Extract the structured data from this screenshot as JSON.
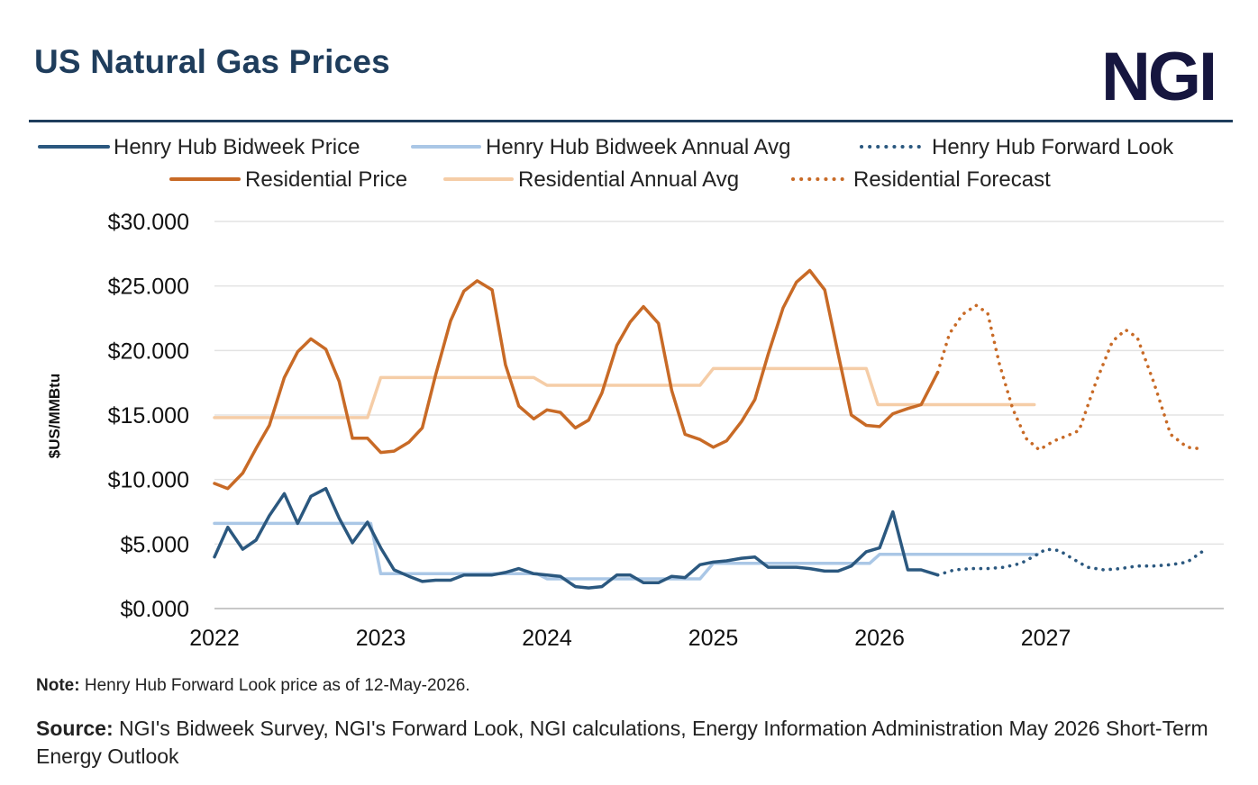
{
  "header": {
    "title": "US Natural Gas Prices",
    "logo_text": "NGI"
  },
  "footer": {
    "note_label": "Note:",
    "note_text": " Henry Hub Forward Look price as of 12-May-2026.",
    "source_label": "Source:",
    "source_text": " NGI's Bidweek Survey, NGI's Forward Look, NGI calculations, Energy Information Administration May 2026 Short-Term Energy Outlook"
  },
  "colors": {
    "henry_hub": "#2b587f",
    "henry_hub_avg": "#aac7e6",
    "residential": "#c86a26",
    "residential_avg": "#f5cda7",
    "grid": "#e3e3e3",
    "axis": "#c8c8c8"
  },
  "chart_data": {
    "type": "line",
    "title": "US Natural Gas Prices",
    "xlabel": "",
    "ylabel": "$US/MMBtu",
    "xlim": [
      2022.0,
      2028.07
    ],
    "ylim": [
      0,
      30
    ],
    "x_ticks": [
      2022,
      2023,
      2024,
      2025,
      2026,
      2027
    ],
    "y_ticks": [
      "$0.000",
      "$5.000",
      "$10.000",
      "$15.000",
      "$20.000",
      "$25.000",
      "$30.000"
    ],
    "grid": true,
    "legend_position": "top",
    "series": [
      {
        "name": "Henry Hub Bidweek Price",
        "style": "solid",
        "color": "#2b587f",
        "points": [
          [
            2022.0,
            4.0
          ],
          [
            2022.08,
            6.3
          ],
          [
            2022.17,
            4.6
          ],
          [
            2022.25,
            5.3
          ],
          [
            2022.33,
            7.2
          ],
          [
            2022.42,
            8.9
          ],
          [
            2022.5,
            6.6
          ],
          [
            2022.58,
            8.7
          ],
          [
            2022.67,
            9.3
          ],
          [
            2022.75,
            7.0
          ],
          [
            2022.83,
            5.1
          ],
          [
            2022.92,
            6.7
          ],
          [
            2023.0,
            4.7
          ],
          [
            2023.08,
            3.0
          ],
          [
            2023.17,
            2.5
          ],
          [
            2023.25,
            2.1
          ],
          [
            2023.33,
            2.2
          ],
          [
            2023.42,
            2.2
          ],
          [
            2023.5,
            2.6
          ],
          [
            2023.58,
            2.6
          ],
          [
            2023.67,
            2.6
          ],
          [
            2023.75,
            2.8
          ],
          [
            2023.83,
            3.1
          ],
          [
            2023.92,
            2.7
          ],
          [
            2024.0,
            2.6
          ],
          [
            2024.08,
            2.5
          ],
          [
            2024.17,
            1.7
          ],
          [
            2024.25,
            1.6
          ],
          [
            2024.33,
            1.7
          ],
          [
            2024.42,
            2.6
          ],
          [
            2024.5,
            2.6
          ],
          [
            2024.58,
            2.0
          ],
          [
            2024.67,
            2.0
          ],
          [
            2024.75,
            2.5
          ],
          [
            2024.83,
            2.4
          ],
          [
            2024.92,
            3.4
          ],
          [
            2025.0,
            3.6
          ],
          [
            2025.08,
            3.7
          ],
          [
            2025.17,
            3.9
          ],
          [
            2025.25,
            4.0
          ],
          [
            2025.33,
            3.2
          ],
          [
            2025.42,
            3.2
          ],
          [
            2025.5,
            3.2
          ],
          [
            2025.58,
            3.1
          ],
          [
            2025.67,
            2.9
          ],
          [
            2025.75,
            2.9
          ],
          [
            2025.83,
            3.3
          ],
          [
            2025.92,
            4.4
          ],
          [
            2026.0,
            4.7
          ],
          [
            2026.08,
            7.5
          ],
          [
            2026.17,
            3.0
          ],
          [
            2026.25,
            3.0
          ],
          [
            2026.35,
            2.6
          ]
        ]
      },
      {
        "name": "Henry Hub Bidweek Annual Avg",
        "style": "solid",
        "color": "#aac7e6",
        "points": [
          [
            2022.0,
            6.6
          ],
          [
            2022.94,
            6.6
          ],
          [
            2023.0,
            2.7
          ],
          [
            2023.94,
            2.7
          ],
          [
            2024.0,
            2.3
          ],
          [
            2024.92,
            2.3
          ],
          [
            2025.0,
            3.5
          ],
          [
            2025.94,
            3.5
          ],
          [
            2026.0,
            4.2
          ],
          [
            2026.95,
            4.2
          ]
        ]
      },
      {
        "name": "Henry Hub Forward Look",
        "style": "dotted",
        "color": "#2b587f",
        "points": [
          [
            2026.35,
            2.6
          ],
          [
            2026.45,
            3.0
          ],
          [
            2026.55,
            3.1
          ],
          [
            2026.65,
            3.1
          ],
          [
            2026.75,
            3.2
          ],
          [
            2026.85,
            3.5
          ],
          [
            2026.95,
            4.2
          ],
          [
            2027.0,
            4.6
          ],
          [
            2027.08,
            4.5
          ],
          [
            2027.17,
            3.8
          ],
          [
            2027.25,
            3.2
          ],
          [
            2027.35,
            3.0
          ],
          [
            2027.45,
            3.1
          ],
          [
            2027.55,
            3.3
          ],
          [
            2027.65,
            3.3
          ],
          [
            2027.75,
            3.4
          ],
          [
            2027.85,
            3.6
          ],
          [
            2027.95,
            4.5
          ]
        ]
      },
      {
        "name": "Residential Price",
        "style": "solid",
        "color": "#c86a26",
        "points": [
          [
            2022.0,
            9.7
          ],
          [
            2022.08,
            9.3
          ],
          [
            2022.17,
            10.5
          ],
          [
            2022.25,
            12.4
          ],
          [
            2022.33,
            14.2
          ],
          [
            2022.42,
            17.9
          ],
          [
            2022.5,
            19.9
          ],
          [
            2022.58,
            20.9
          ],
          [
            2022.67,
            20.1
          ],
          [
            2022.75,
            17.6
          ],
          [
            2022.83,
            13.2
          ],
          [
            2022.92,
            13.2
          ],
          [
            2023.0,
            12.1
          ],
          [
            2023.08,
            12.2
          ],
          [
            2023.17,
            12.9
          ],
          [
            2023.25,
            14.0
          ],
          [
            2023.33,
            18.1
          ],
          [
            2023.42,
            22.3
          ],
          [
            2023.5,
            24.6
          ],
          [
            2023.58,
            25.4
          ],
          [
            2023.67,
            24.7
          ],
          [
            2023.75,
            18.9
          ],
          [
            2023.83,
            15.7
          ],
          [
            2023.92,
            14.7
          ],
          [
            2024.0,
            15.4
          ],
          [
            2024.08,
            15.2
          ],
          [
            2024.17,
            14.0
          ],
          [
            2024.25,
            14.6
          ],
          [
            2024.33,
            16.7
          ],
          [
            2024.42,
            20.4
          ],
          [
            2024.5,
            22.2
          ],
          [
            2024.58,
            23.4
          ],
          [
            2024.67,
            22.1
          ],
          [
            2024.75,
            16.9
          ],
          [
            2024.83,
            13.5
          ],
          [
            2024.92,
            13.1
          ],
          [
            2025.0,
            12.5
          ],
          [
            2025.08,
            13.0
          ],
          [
            2025.17,
            14.5
          ],
          [
            2025.25,
            16.2
          ],
          [
            2025.33,
            19.7
          ],
          [
            2025.42,
            23.3
          ],
          [
            2025.5,
            25.3
          ],
          [
            2025.58,
            26.2
          ],
          [
            2025.67,
            24.7
          ],
          [
            2025.75,
            19.8
          ],
          [
            2025.83,
            15.0
          ],
          [
            2025.92,
            14.2
          ],
          [
            2026.0,
            14.1
          ],
          [
            2026.08,
            15.1
          ],
          [
            2026.17,
            15.5
          ],
          [
            2026.25,
            15.8
          ],
          [
            2026.35,
            18.3
          ]
        ]
      },
      {
        "name": "Residential Annual Avg",
        "style": "solid",
        "color": "#f5cda7",
        "points": [
          [
            2022.0,
            14.8
          ],
          [
            2022.92,
            14.8
          ],
          [
            2023.0,
            17.9
          ],
          [
            2023.92,
            17.9
          ],
          [
            2024.0,
            17.3
          ],
          [
            2024.92,
            17.3
          ],
          [
            2025.0,
            18.6
          ],
          [
            2025.92,
            18.6
          ],
          [
            2025.99,
            15.8
          ],
          [
            2026.93,
            15.8
          ]
        ]
      },
      {
        "name": "Residential Forecast",
        "style": "dotted",
        "color": "#c86a26",
        "points": [
          [
            2026.35,
            18.3
          ],
          [
            2026.42,
            21.3
          ],
          [
            2026.5,
            22.8
          ],
          [
            2026.58,
            23.5
          ],
          [
            2026.65,
            22.9
          ],
          [
            2026.72,
            19.0
          ],
          [
            2026.8,
            15.5
          ],
          [
            2026.88,
            13.2
          ],
          [
            2026.96,
            12.3
          ],
          [
            2027.05,
            13.0
          ],
          [
            2027.13,
            13.4
          ],
          [
            2027.2,
            13.8
          ],
          [
            2027.3,
            17.5
          ],
          [
            2027.4,
            20.7
          ],
          [
            2027.48,
            21.6
          ],
          [
            2027.55,
            21.0
          ],
          [
            2027.65,
            17.5
          ],
          [
            2027.75,
            13.5
          ],
          [
            2027.85,
            12.5
          ],
          [
            2027.92,
            12.4
          ]
        ]
      }
    ]
  }
}
